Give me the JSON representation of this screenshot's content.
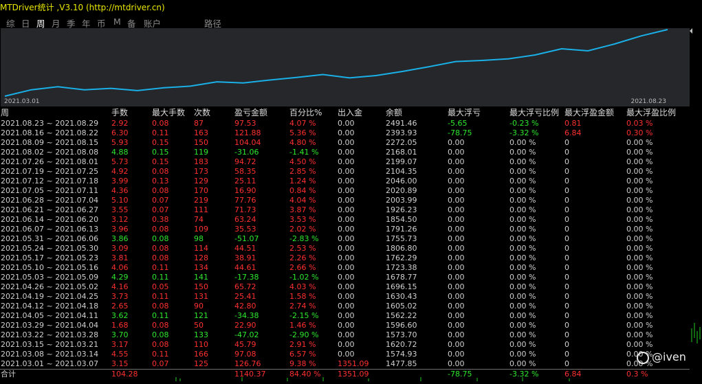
{
  "title": "MTDriver统计 ,V3.10 (http://mtdriver.cn)",
  "tabs": [
    "综",
    "日",
    "周",
    "月",
    "季",
    "年",
    "币",
    "M",
    "备",
    "账户",
    "路径"
  ],
  "active_tab": "周",
  "chart": {
    "x_start_label": "2021.03.01",
    "x_end_label": "2021.08.23",
    "line_color": "#1ab0e8",
    "balance": [
      1477.85,
      1574.93,
      1620.72,
      1573.7,
      1596.6,
      1562.22,
      1605.02,
      1630.43,
      1696.15,
      1678.77,
      1723.38,
      1762.29,
      1806.8,
      1755.73,
      1791.26,
      1854.5,
      1926.23,
      2003.99,
      2020.89,
      2046.0,
      2104.35,
      2199.07,
      2168.01,
      2272.05,
      2393.93,
      2491.46
    ]
  },
  "table": {
    "headers": [
      "周",
      "手数",
      "最大手数",
      "次数",
      "盈亏金额",
      "百分比%",
      "出入金",
      "余额",
      "最大浮亏",
      "最大浮亏比例",
      "最大浮盈金额",
      "最大浮盈比例"
    ],
    "rows": [
      [
        "2021.08.23 ~ 2021.08.29",
        "2.92",
        "0.08",
        "87",
        "97.53",
        "4.07 %",
        "0.00",
        "2491.46",
        "-5.65",
        "-0.23 %",
        "0.81",
        "0.03 %"
      ],
      [
        "2021.08.16 ~ 2021.08.22",
        "6.30",
        "0.11",
        "163",
        "121.88",
        "5.36 %",
        "0.00",
        "2393.93",
        "-78.75",
        "-3.32 %",
        "6.84",
        "0.30 %"
      ],
      [
        "2021.08.09 ~ 2021.08.15",
        "5.93",
        "0.15",
        "150",
        "104.04",
        "4.80 %",
        "0.00",
        "2272.05",
        "0.00",
        "0.00 %",
        "0",
        "0.00 %"
      ],
      [
        "2021.08.02 ~ 2021.08.08",
        "4.88",
        "0.15",
        "119",
        "-31.06",
        "-1.41 %",
        "0.00",
        "2168.01",
        "0.00",
        "0.00 %",
        "0",
        "0.00 %"
      ],
      [
        "2021.07.26 ~ 2021.08.01",
        "5.73",
        "0.15",
        "183",
        "94.72",
        "4.50 %",
        "0.00",
        "2199.07",
        "0.00",
        "0.00 %",
        "0",
        "0.00 %"
      ],
      [
        "2021.07.19 ~ 2021.07.25",
        "4.92",
        "0.08",
        "173",
        "58.35",
        "2.85 %",
        "0.00",
        "2104.35",
        "0.00",
        "0.00 %",
        "0",
        "0.00 %"
      ],
      [
        "2021.07.12 ~ 2021.07.18",
        "3.99",
        "0.13",
        "129",
        "25.11",
        "1.24 %",
        "0.00",
        "2046.00",
        "0.00",
        "0.00 %",
        "0",
        "0.00 %"
      ],
      [
        "2021.07.05 ~ 2021.07.11",
        "4.36",
        "0.08",
        "170",
        "16.90",
        "0.84 %",
        "0.00",
        "2020.89",
        "0.00",
        "0.00 %",
        "0",
        "0.00 %"
      ],
      [
        "2021.06.28 ~ 2021.07.04",
        "5.10",
        "0.07",
        "219",
        "77.76",
        "4.04 %",
        "0.00",
        "2003.99",
        "0.00",
        "0.00 %",
        "0",
        "0.00 %"
      ],
      [
        "2021.06.21 ~ 2021.06.27",
        "3.55",
        "0.07",
        "111",
        "71.73",
        "3.87 %",
        "0.00",
        "1926.23",
        "0.00",
        "0.00 %",
        "0",
        "0.00 %"
      ],
      [
        "2021.06.14 ~ 2021.06.20",
        "3.12",
        "0.38",
        "74",
        "63.24",
        "3.53 %",
        "0.00",
        "1854.50",
        "0.00",
        "0.00 %",
        "0",
        "0.00 %"
      ],
      [
        "2021.06.07 ~ 2021.06.13",
        "3.96",
        "0.08",
        "109",
        "35.53",
        "2.02 %",
        "0.00",
        "1791.26",
        "0.00",
        "0.00 %",
        "0",
        "0.00 %"
      ],
      [
        "2021.05.31 ~ 2021.06.06",
        "3.86",
        "0.08",
        "98",
        "-51.07",
        "-2.83 %",
        "0.00",
        "1755.73",
        "0.00",
        "0.00 %",
        "0",
        "0.00 %"
      ],
      [
        "2021.05.24 ~ 2021.05.30",
        "3.09",
        "0.08",
        "114",
        "44.51",
        "2.53 %",
        "0.00",
        "1806.80",
        "0.00",
        "0.00 %",
        "0",
        "0.00 %"
      ],
      [
        "2021.05.17 ~ 2021.05.23",
        "3.81",
        "0.08",
        "128",
        "38.91",
        "2.26 %",
        "0.00",
        "1762.29",
        "0.00",
        "0.00 %",
        "0",
        "0.00 %"
      ],
      [
        "2021.05.10 ~ 2021.05.16",
        "4.06",
        "0.11",
        "134",
        "44.61",
        "2.66 %",
        "0.00",
        "1723.38",
        "0.00",
        "0.00 %",
        "0",
        "0.00 %"
      ],
      [
        "2021.05.03 ~ 2021.05.09",
        "4.29",
        "0.11",
        "141",
        "-17.38",
        "-1.02 %",
        "0.00",
        "1678.77",
        "0.00",
        "0.00 %",
        "0",
        "0.00 %"
      ],
      [
        "2021.04.26 ~ 2021.05.02",
        "4.16",
        "0.05",
        "150",
        "65.72",
        "4.03 %",
        "0.00",
        "1696.15",
        "0.00",
        "0.00 %",
        "0",
        "0.00 %"
      ],
      [
        "2021.04.19 ~ 2021.04.25",
        "3.73",
        "0.11",
        "131",
        "25.41",
        "1.58 %",
        "0.00",
        "1630.43",
        "0.00",
        "0.00 %",
        "0",
        "0.00 %"
      ],
      [
        "2021.04.12 ~ 2021.04.18",
        "2.65",
        "0.08",
        "90",
        "42.80",
        "2.74 %",
        "0.00",
        "1605.02",
        "0.00",
        "0.00 %",
        "0",
        "0.00 %"
      ],
      [
        "2021.04.05 ~ 2021.04.11",
        "3.62",
        "0.11",
        "121",
        "-34.38",
        "-2.15 %",
        "0.00",
        "1562.22",
        "0.00",
        "0.00 %",
        "0",
        "0.00 %"
      ],
      [
        "2021.03.29 ~ 2021.04.04",
        "1.68",
        "0.08",
        "50",
        "22.90",
        "1.46 %",
        "0.00",
        "1596.60",
        "0.00",
        "0.00 %",
        "0",
        "0.00 %"
      ],
      [
        "2021.03.22 ~ 2021.03.28",
        "3.70",
        "0.08",
        "133",
        "-47.02",
        "-2.90 %",
        "0.00",
        "1573.70",
        "0.00",
        "0.00 %",
        "0",
        "0.00 %"
      ],
      [
        "2021.03.15 ~ 2021.03.21",
        "3.17",
        "0.08",
        "110",
        "45.79",
        "2.91 %",
        "0.00",
        "1620.72",
        "0.00",
        "0.00 %",
        "0",
        "0.00 %"
      ],
      [
        "2021.03.08 ~ 2021.03.14",
        "4.55",
        "0.11",
        "166",
        "97.08",
        "6.57 %",
        "0.00",
        "1574.93",
        "0.00",
        "0.00 %",
        "0",
        "0.00 %"
      ],
      [
        "2021.03.01 ~ 2021.03.07",
        "3.15",
        "0.07",
        "125",
        "126.76",
        "9.38 %",
        "1351.09",
        "1477.85",
        "0.00",
        "0.00 %",
        "0",
        "0.00 %"
      ]
    ],
    "totals": [
      "合计",
      "104.28",
      "",
      "",
      "1140.37",
      "84.40 %",
      "1351.09",
      "",
      "-78.75",
      "-3.32 %",
      "6.84",
      "0.3 %"
    ]
  },
  "watermark": "@iven",
  "colors": {
    "profit": "#ff3030",
    "loss": "#2ee82e",
    "neutral": "#d0d0d0",
    "title": "#e8e800",
    "chart_bg": "#25272b"
  }
}
